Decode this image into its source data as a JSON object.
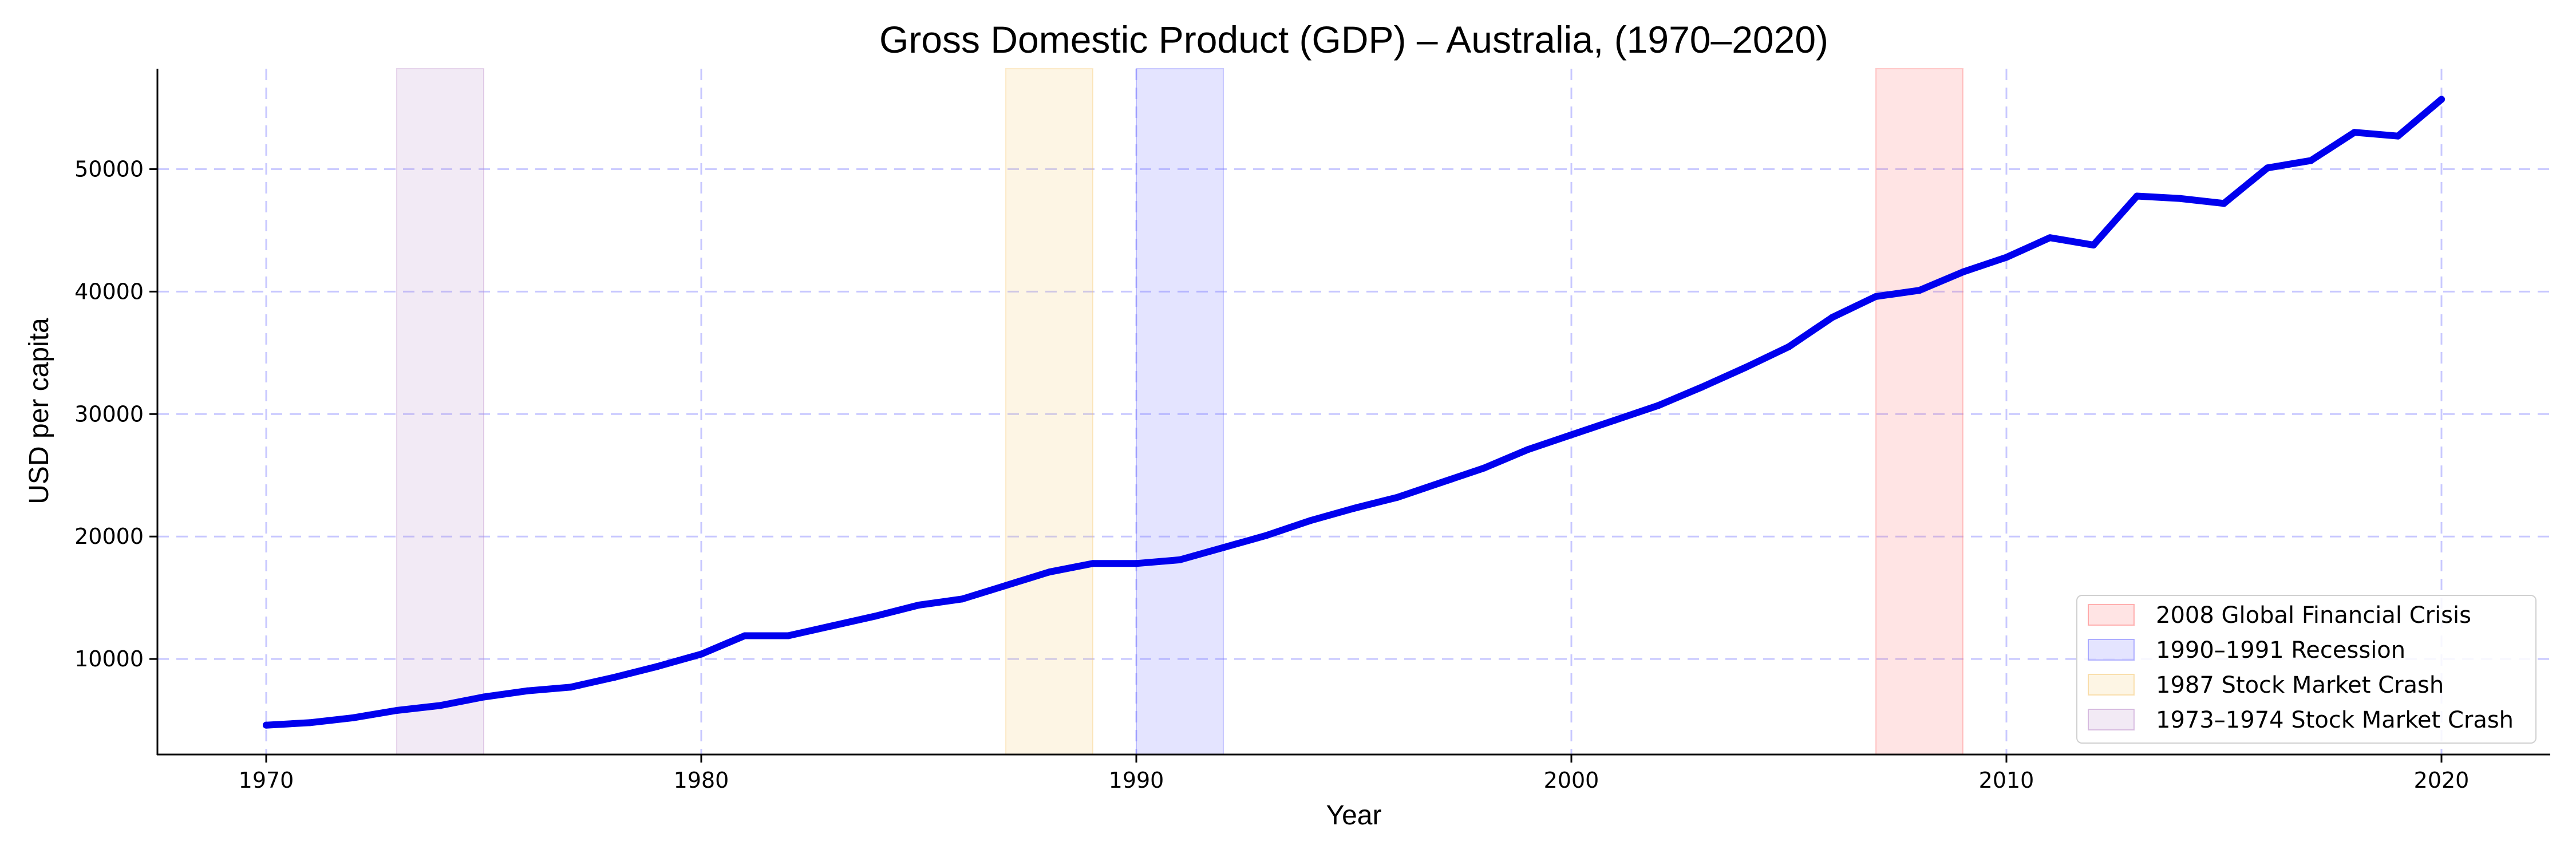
{
  "chart_data": {
    "type": "line",
    "title": "Gross Domestic Product (GDP) – Australia, (1970–2020)",
    "xlabel": "Year",
    "ylabel": "USD per capita",
    "xlim": [
      1967.5,
      2022.5
    ],
    "ylim": [
      2200,
      58200
    ],
    "x_ticks": [
      1970,
      1980,
      1990,
      2000,
      2010,
      2020
    ],
    "y_ticks": [
      10000,
      20000,
      30000,
      40000,
      50000
    ],
    "x_tick_labels": [
      "1970",
      "1980",
      "1990",
      "2000",
      "2010",
      "2020"
    ],
    "y_tick_labels": [
      "10000",
      "20000",
      "30000",
      "40000",
      "50000"
    ],
    "grid": true,
    "legend_position": "lower-right",
    "series": [
      {
        "color": "#0000ee",
        "x": [
          1970,
          1971,
          1972,
          1973,
          1974,
          1975,
          1976,
          1977,
          1978,
          1979,
          1980,
          1981,
          1982,
          1983,
          1984,
          1985,
          1986,
          1987,
          1988,
          1989,
          1990,
          1991,
          1992,
          1993,
          1994,
          1995,
          1996,
          1997,
          1998,
          1999,
          2000,
          2001,
          2002,
          2003,
          2004,
          2005,
          2006,
          2007,
          2008,
          2009,
          2010,
          2011,
          2012,
          2013,
          2014,
          2015,
          2016,
          2017,
          2018,
          2019,
          2020
        ],
        "values": [
          4600,
          4800,
          5200,
          5800,
          6200,
          6900,
          7400,
          7700,
          8500,
          9400,
          10400,
          11900,
          11900,
          12700,
          13500,
          14400,
          14900,
          16000,
          17100,
          17800,
          17800,
          18100,
          19100,
          20100,
          21300,
          22300,
          23200,
          24400,
          25600,
          27100,
          28300,
          29500,
          30700,
          32200,
          33800,
          35500,
          37900,
          39600,
          40100,
          41600,
          42800,
          44400,
          43800,
          47800,
          47600,
          47200,
          50100,
          50700,
          53000,
          52700,
          55700
        ]
      }
    ],
    "shaded_periods": [
      {
        "label": "2008 Global Financial Crisis",
        "start": 2007,
        "end": 2009,
        "color": "#ff6b6b"
      },
      {
        "label": "1990–1991 Recession",
        "start": 1990,
        "end": 1992,
        "color": "#6b6bff"
      },
      {
        "label": "1987 Stock Market Crash",
        "start": 1987,
        "end": 1989,
        "color": "#f6c56b"
      },
      {
        "label": "1973–1974 Stock Market Crash",
        "start": 1973,
        "end": 1975,
        "color": "#b98ac9"
      }
    ]
  }
}
